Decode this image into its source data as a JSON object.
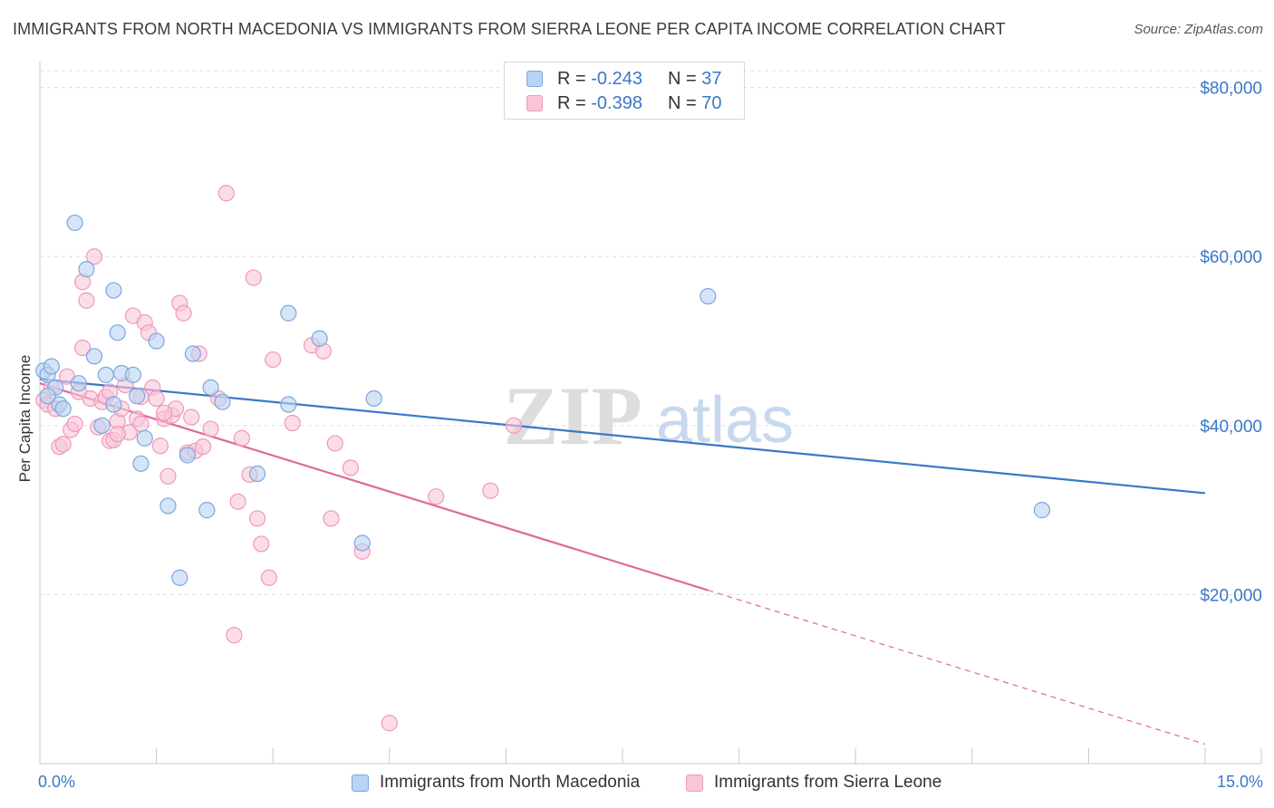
{
  "title": "IMMIGRANTS FROM NORTH MACEDONIA VS IMMIGRANTS FROM SIERRA LEONE PER CAPITA INCOME CORRELATION CHART",
  "source": "Source: ZipAtlas.com",
  "watermark": {
    "zip": "ZIP",
    "atlas": "atlas"
  },
  "legend": {
    "rows": [
      {
        "r_label": "R = ",
        "r_value": "-0.243",
        "n_label": "N = ",
        "n_value": "37"
      },
      {
        "r_label": "R = ",
        "r_value": "-0.398",
        "n_label": "N = ",
        "n_value": "70"
      }
    ]
  },
  "bottom_legend": [
    "Immigrants from North Macedonia",
    "Immigrants from Sierra Leone"
  ],
  "colors": {
    "blue": "#3a78c8",
    "blue_fill": "#b9d3f2",
    "blue_stroke": "#7aa7de",
    "pink": "#e0689a",
    "pink_fill": "#f8c6d8",
    "pink_stroke": "#ee99b9",
    "grid": "#dcdcdc"
  },
  "chart_data": {
    "type": "scatter",
    "title": "IMMIGRANTS FROM NORTH MACEDONIA VS IMMIGRANTS FROM SIERRA LEONE PER CAPITA INCOME CORRELATION CHART",
    "xlabel": "",
    "ylabel": "Per Capita Income",
    "xlim": [
      0,
      15
    ],
    "ylim": [
      0,
      82000
    ],
    "x_tick_labels": [
      "0.0%",
      "15.0%"
    ],
    "y_ticks": [
      20000,
      40000,
      60000,
      80000
    ],
    "y_tick_labels": [
      "$20,000",
      "$40,000",
      "$60,000",
      "$80,000"
    ],
    "grid": true,
    "series": [
      {
        "name": "Immigrants from North Macedonia",
        "color": "blue",
        "points": [
          [
            0.05,
            46500
          ],
          [
            0.1,
            46000
          ],
          [
            0.15,
            47000
          ],
          [
            0.2,
            44500
          ],
          [
            0.25,
            42500
          ],
          [
            0.3,
            42000
          ],
          [
            0.5,
            45000
          ],
          [
            0.45,
            64000
          ],
          [
            0.6,
            58500
          ],
          [
            0.7,
            48200
          ],
          [
            0.8,
            40000
          ],
          [
            0.85,
            46000
          ],
          [
            0.95,
            42500
          ],
          [
            0.95,
            56000
          ],
          [
            1.0,
            51000
          ],
          [
            1.05,
            46200
          ],
          [
            1.2,
            46000
          ],
          [
            1.25,
            43500
          ],
          [
            1.3,
            35500
          ],
          [
            1.35,
            38500
          ],
          [
            1.5,
            50000
          ],
          [
            1.65,
            30500
          ],
          [
            1.8,
            22000
          ],
          [
            1.9,
            36500
          ],
          [
            1.97,
            48500
          ],
          [
            2.15,
            30000
          ],
          [
            2.2,
            44500
          ],
          [
            2.35,
            42800
          ],
          [
            2.8,
            34300
          ],
          [
            3.2,
            42500
          ],
          [
            3.2,
            53300
          ],
          [
            3.6,
            50300
          ],
          [
            4.15,
            26100
          ],
          [
            4.3,
            43200
          ],
          [
            8.6,
            55300
          ],
          [
            12.9,
            30000
          ],
          [
            0.1,
            43500
          ]
        ],
        "trend": {
          "x": [
            0,
            15
          ],
          "y": [
            45500,
            32000
          ]
        }
      },
      {
        "name": "Immigrants from Sierra Leone",
        "color": "pink",
        "points": [
          [
            0.05,
            43000
          ],
          [
            0.1,
            42500
          ],
          [
            0.2,
            42000
          ],
          [
            0.25,
            37500
          ],
          [
            0.3,
            37800
          ],
          [
            0.35,
            45800
          ],
          [
            0.4,
            39500
          ],
          [
            0.45,
            40200
          ],
          [
            0.55,
            57000
          ],
          [
            0.6,
            54800
          ],
          [
            0.55,
            49200
          ],
          [
            0.65,
            43200
          ],
          [
            0.7,
            60000
          ],
          [
            0.75,
            39800
          ],
          [
            0.8,
            42800
          ],
          [
            0.85,
            43400
          ],
          [
            0.9,
            38200
          ],
          [
            0.95,
            38300
          ],
          [
            1.0,
            40500
          ],
          [
            1.05,
            42000
          ],
          [
            1.1,
            44800
          ],
          [
            1.15,
            39200
          ],
          [
            1.2,
            53000
          ],
          [
            1.25,
            40800
          ],
          [
            1.3,
            43400
          ],
          [
            1.35,
            52200
          ],
          [
            1.4,
            51000
          ],
          [
            1.45,
            44500
          ],
          [
            1.5,
            43200
          ],
          [
            1.55,
            37600
          ],
          [
            1.6,
            40800
          ],
          [
            1.65,
            34000
          ],
          [
            1.7,
            41200
          ],
          [
            1.75,
            42000
          ],
          [
            1.8,
            54500
          ],
          [
            1.85,
            53300
          ],
          [
            1.9,
            36800
          ],
          [
            1.95,
            41000
          ],
          [
            2.0,
            37000
          ],
          [
            2.05,
            48500
          ],
          [
            2.1,
            37500
          ],
          [
            2.2,
            39600
          ],
          [
            2.3,
            43200
          ],
          [
            2.4,
            67500
          ],
          [
            2.5,
            15200
          ],
          [
            2.55,
            31000
          ],
          [
            2.6,
            38500
          ],
          [
            2.7,
            34200
          ],
          [
            2.75,
            57500
          ],
          [
            2.8,
            29000
          ],
          [
            2.85,
            26000
          ],
          [
            2.95,
            22000
          ],
          [
            3.0,
            47800
          ],
          [
            3.25,
            40300
          ],
          [
            3.5,
            49500
          ],
          [
            3.65,
            48800
          ],
          [
            3.75,
            29000
          ],
          [
            3.8,
            37900
          ],
          [
            4.0,
            35000
          ],
          [
            4.15,
            25100
          ],
          [
            4.5,
            4800
          ],
          [
            5.1,
            31600
          ],
          [
            5.8,
            32300
          ],
          [
            6.1,
            40000
          ],
          [
            1.3,
            40200
          ],
          [
            0.9,
            44000
          ],
          [
            1.0,
            39000
          ],
          [
            0.15,
            44500
          ],
          [
            0.5,
            44000
          ],
          [
            1.6,
            41500
          ]
        ],
        "trend": {
          "x": [
            0,
            15
          ],
          "y": [
            45000,
            2300
          ],
          "solid_until_x": 8.6
        }
      }
    ]
  }
}
